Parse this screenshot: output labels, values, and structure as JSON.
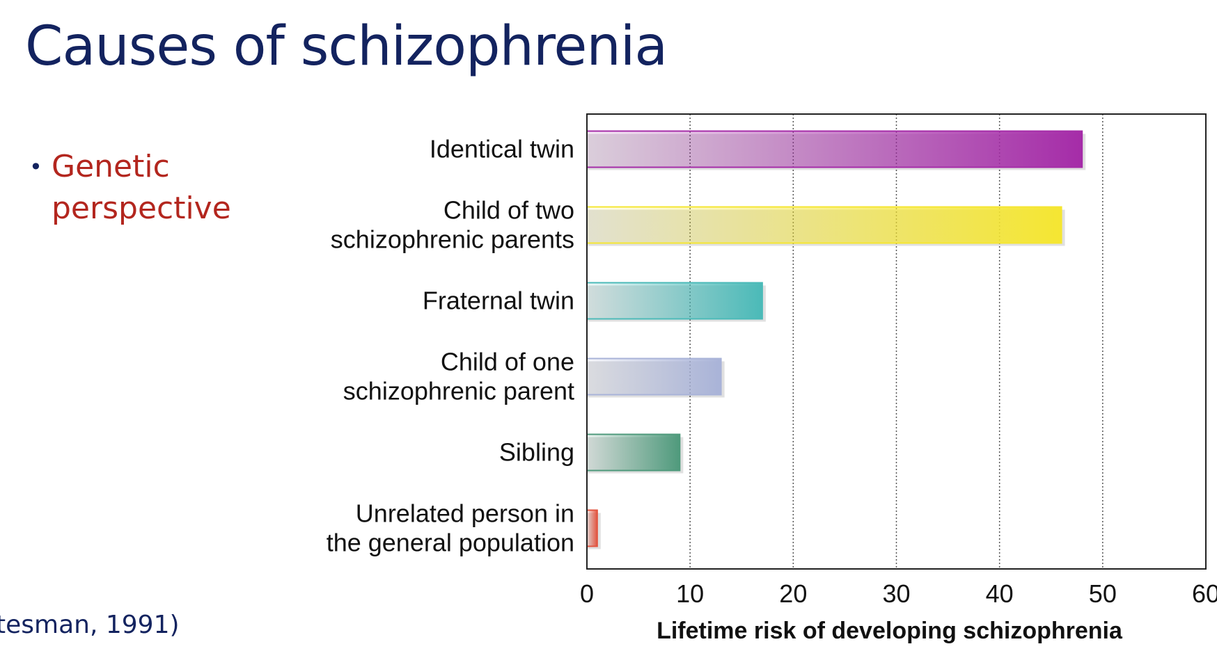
{
  "slide": {
    "title": "Causes of schizophrenia",
    "bullet_marker": "•",
    "bullet_line1": "Genetic",
    "bullet_line2": "perspective",
    "citation": "tesman, 1991)"
  },
  "colors": {
    "title": "#13235f",
    "bullet": "#b3261e"
  },
  "chart_data": {
    "type": "bar",
    "orientation": "horizontal",
    "title": "",
    "xlabel": "Lifetime risk of developing schizophrenia",
    "ylabel": "",
    "xlim": [
      0,
      60
    ],
    "xticks": [
      0,
      10,
      20,
      30,
      40,
      50,
      60
    ],
    "grid": "vertical dotted",
    "categories": [
      [
        "Identical twin"
      ],
      [
        "Child of two",
        "schizophrenic parents"
      ],
      [
        "Fraternal twin"
      ],
      [
        "Child of one",
        "schizophrenic parent"
      ],
      [
        "Sibling"
      ],
      [
        "Unrelated person in",
        "the general population"
      ]
    ],
    "values": [
      48,
      46,
      17,
      13,
      9,
      1
    ],
    "bar_colors": [
      "#a52ca8",
      "#f5e632",
      "#4bbab8",
      "#a9b3d8",
      "#4f9a7c",
      "#e25540"
    ]
  }
}
